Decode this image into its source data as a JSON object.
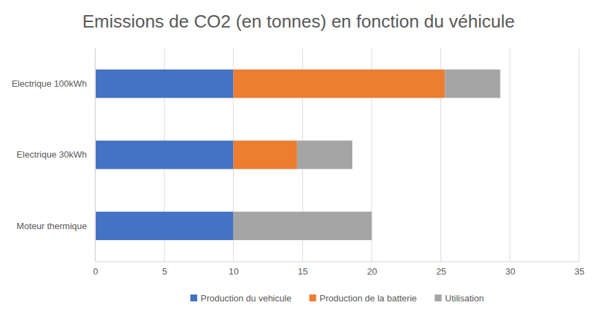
{
  "chart_data": {
    "type": "bar",
    "orientation": "horizontal",
    "stacked": true,
    "title": "Emissions de CO2 (en tonnes) en fonction du véhicule",
    "categories": [
      "Electrique 100kWh",
      "Electrique 30kWh",
      "Moteur thermique"
    ],
    "series": [
      {
        "name": "Production du vehicule",
        "color": "#4472c4",
        "values": [
          10,
          10,
          10
        ]
      },
      {
        "name": "Production de la batterie",
        "color": "#ed7d31",
        "values": [
          15.3,
          4.6,
          0
        ]
      },
      {
        "name": "Utilisation",
        "color": "#a5a5a5",
        "values": [
          4,
          4,
          10
        ]
      }
    ],
    "xlim": [
      0,
      35
    ],
    "xticks": [
      0,
      5,
      10,
      15,
      20,
      25,
      30,
      35
    ],
    "grid": true,
    "legend": "bottom"
  }
}
